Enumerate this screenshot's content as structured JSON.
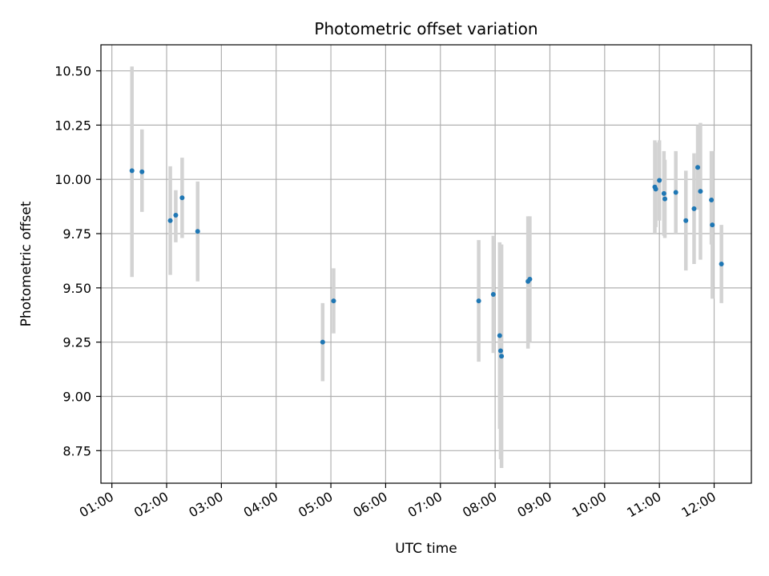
{
  "chart_data": {
    "type": "scatter",
    "title": "Photometric offset variation",
    "xlabel": "UTC time",
    "ylabel": "Photometric offset",
    "x_ticks": [
      "01:00",
      "02:00",
      "03:00",
      "04:00",
      "05:00",
      "06:00",
      "07:00",
      "08:00",
      "09:00",
      "10:00",
      "11:00",
      "12:00"
    ],
    "y_ticks": [
      "8.75",
      "9.00",
      "9.25",
      "9.50",
      "9.75",
      "10.00",
      "10.25",
      "10.50"
    ],
    "xlim_hours": [
      0.8,
      12.68
    ],
    "ylim": [
      8.6,
      10.62
    ],
    "grid": true,
    "colors": {
      "points": "#1f77b4",
      "errorbars": "#d3d3d3",
      "grid": "#b0b0b0",
      "axes": "#000000"
    },
    "points": [
      {
        "t": "01:22",
        "y": 10.04,
        "ylow": 9.55,
        "yhigh": 10.52
      },
      {
        "t": "01:33",
        "y": 10.035,
        "ylow": 9.85,
        "yhigh": 10.23
      },
      {
        "t": "02:04",
        "y": 9.81,
        "ylow": 9.56,
        "yhigh": 10.06
      },
      {
        "t": "02:10",
        "y": 9.835,
        "ylow": 9.71,
        "yhigh": 9.95
      },
      {
        "t": "02:17",
        "y": 9.915,
        "ylow": 9.73,
        "yhigh": 10.1
      },
      {
        "t": "02:34",
        "y": 9.76,
        "ylow": 9.53,
        "yhigh": 9.99
      },
      {
        "t": "04:51",
        "y": 9.25,
        "ylow": 9.07,
        "yhigh": 9.43
      },
      {
        "t": "05:03",
        "y": 9.44,
        "ylow": 9.29,
        "yhigh": 9.59
      },
      {
        "t": "07:42",
        "y": 9.44,
        "ylow": 9.16,
        "yhigh": 9.72
      },
      {
        "t": "07:58",
        "y": 9.47,
        "ylow": 9.2,
        "yhigh": 9.74
      },
      {
        "t": "08:05",
        "y": 9.28,
        "ylow": 8.85,
        "yhigh": 9.71
      },
      {
        "t": "08:06",
        "y": 9.21,
        "ylow": 8.71,
        "yhigh": 9.7
      },
      {
        "t": "08:07",
        "y": 9.185,
        "ylow": 8.67,
        "yhigh": 9.7
      },
      {
        "t": "08:36",
        "y": 9.53,
        "ylow": 9.22,
        "yhigh": 9.83
      },
      {
        "t": "08:38",
        "y": 9.54,
        "ylow": 9.25,
        "yhigh": 9.83
      },
      {
        "t": "10:55",
        "y": 9.965,
        "ylow": 9.75,
        "yhigh": 10.18
      },
      {
        "t": "10:56",
        "y": 9.955,
        "ylow": 9.78,
        "yhigh": 10.17
      },
      {
        "t": "11:00",
        "y": 9.995,
        "ylow": 9.81,
        "yhigh": 10.18
      },
      {
        "t": "11:05",
        "y": 9.935,
        "ylow": 9.74,
        "yhigh": 10.13
      },
      {
        "t": "11:06",
        "y": 9.91,
        "ylow": 9.73,
        "yhigh": 10.09
      },
      {
        "t": "11:18",
        "y": 9.94,
        "ylow": 9.75,
        "yhigh": 10.13
      },
      {
        "t": "11:29",
        "y": 9.81,
        "ylow": 9.58,
        "yhigh": 10.04
      },
      {
        "t": "11:38",
        "y": 9.865,
        "ylow": 9.61,
        "yhigh": 10.12
      },
      {
        "t": "11:42",
        "y": 10.055,
        "ylow": 9.86,
        "yhigh": 10.25
      },
      {
        "t": "11:45",
        "y": 9.945,
        "ylow": 9.63,
        "yhigh": 10.26
      },
      {
        "t": "11:57",
        "y": 9.905,
        "ylow": 9.7,
        "yhigh": 10.13
      },
      {
        "t": "11:58",
        "y": 9.79,
        "ylow": 9.45,
        "yhigh": 10.13
      },
      {
        "t": "12:08",
        "y": 9.61,
        "ylow": 9.43,
        "yhigh": 9.79
      }
    ]
  }
}
